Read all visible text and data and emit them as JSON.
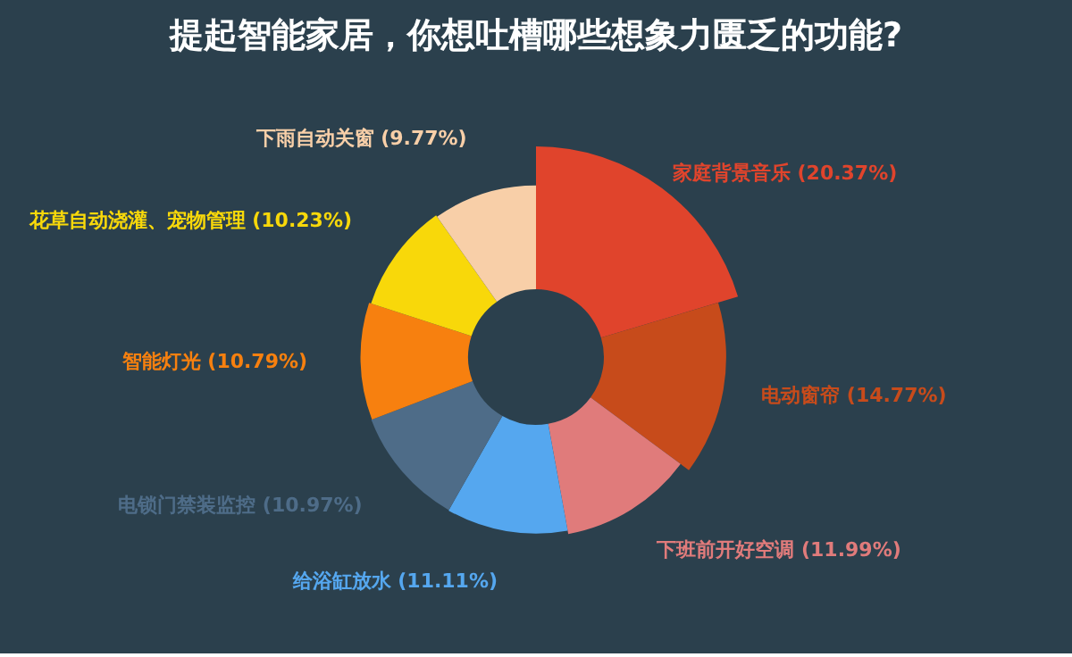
{
  "chart_data": {
    "type": "donut",
    "title": "提起智能家居，你想吐槽哪些想象力匮乏的功能?",
    "categories": [
      "家庭背景音乐",
      "电动窗帘",
      "下班前开好空调",
      "给浴缸放水",
      "电锁门禁装监控",
      "智能灯光",
      "花草自动浇灌、宠物管理",
      "下雨自动关窗"
    ],
    "values": [
      20.37,
      14.77,
      11.99,
      11.11,
      10.97,
      10.79,
      10.23,
      9.77
    ],
    "value_labels": [
      "(20.37%)",
      "(14.77%)",
      "(11.99%)",
      "(11.11%)",
      "(10.97%)",
      "(10.79%)",
      "(10.23%)",
      "(9.77%)"
    ],
    "colors": [
      "#e0442c",
      "#c74b1b",
      "#e07b7b",
      "#55a7ef",
      "#4e6c88",
      "#f7800f",
      "#f8d80a",
      "#f8cfa8"
    ],
    "legend": false
  }
}
